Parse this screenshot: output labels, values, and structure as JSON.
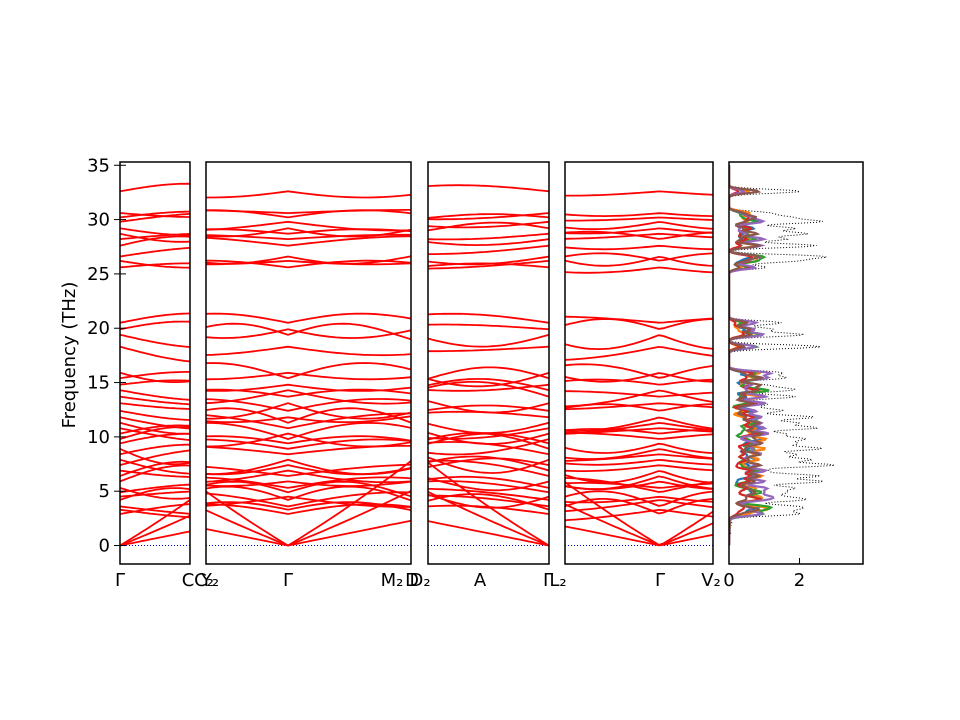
{
  "chart_data": [
    {
      "type": "line",
      "panel": "phonon-band-structure",
      "ylabel": "Frequency (THz)",
      "ylim": [
        -1.7,
        35.3
      ],
      "yticks": [
        0,
        5,
        10,
        15,
        20,
        25,
        30,
        35
      ],
      "zero_line": {
        "y": 0,
        "color": "#0000cc",
        "style": "dotted"
      },
      "band_color": "#ff0000",
      "segments": [
        {
          "from": "Γ",
          "to": "C",
          "x_labels": [
            "Γ",
            "C"
          ]
        },
        {
          "from": "Y2",
          "to": "Γ",
          "to2": "M2",
          "x_labels": [
            "Y₂",
            "Γ",
            "M₂"
          ]
        },
        {
          "from": "D2",
          "to": "A",
          "to2": "Γ",
          "x_labels": [
            "D₂",
            "A",
            "Γ"
          ]
        },
        {
          "from": "L2",
          "to": "Γ",
          "to2": "V2",
          "x_labels": [
            "L₂",
            "Γ",
            "V₂"
          ]
        }
      ],
      "x_tick_labels": [
        "Γ",
        "C",
        "C₂",
        "Y₂",
        "Γ",
        "M₂",
        "D",
        "D₂",
        "A",
        "Γ",
        "L₂",
        "Γ",
        "V₂"
      ],
      "bands_at_gamma": [
        0,
        0,
        0,
        2.9,
        3.3,
        3.6,
        4.2,
        4.5,
        4.9,
        5.3,
        5.9,
        6.4,
        6.9,
        7.4,
        7.9,
        8.4,
        8.9,
        9.4,
        9.8,
        10.3,
        10.8,
        11.3,
        11.8,
        12.4,
        13.1,
        13.7,
        14.3,
        14.8,
        15.4,
        15.9,
        18.3,
        19.4,
        19.9,
        20.5,
        25.6,
        26.2,
        26.6,
        27.6,
        28.2,
        28.7,
        29.2,
        29.8,
        30.2,
        30.6,
        32.6
      ]
    },
    {
      "type": "line",
      "panel": "density-of-states",
      "xlim": [
        0,
        3.8
      ],
      "xticks": [
        0,
        2
      ],
      "ylim": [
        -1.7,
        35.3
      ],
      "series": [
        {
          "color": "#000000",
          "style": "dotted",
          "role": "total"
        },
        {
          "color": "#1f77b4"
        },
        {
          "color": "#ff7f0e"
        },
        {
          "color": "#2ca02c"
        },
        {
          "color": "#d62728"
        },
        {
          "color": "#9467bd"
        },
        {
          "color": "#8c564b"
        }
      ]
    }
  ]
}
